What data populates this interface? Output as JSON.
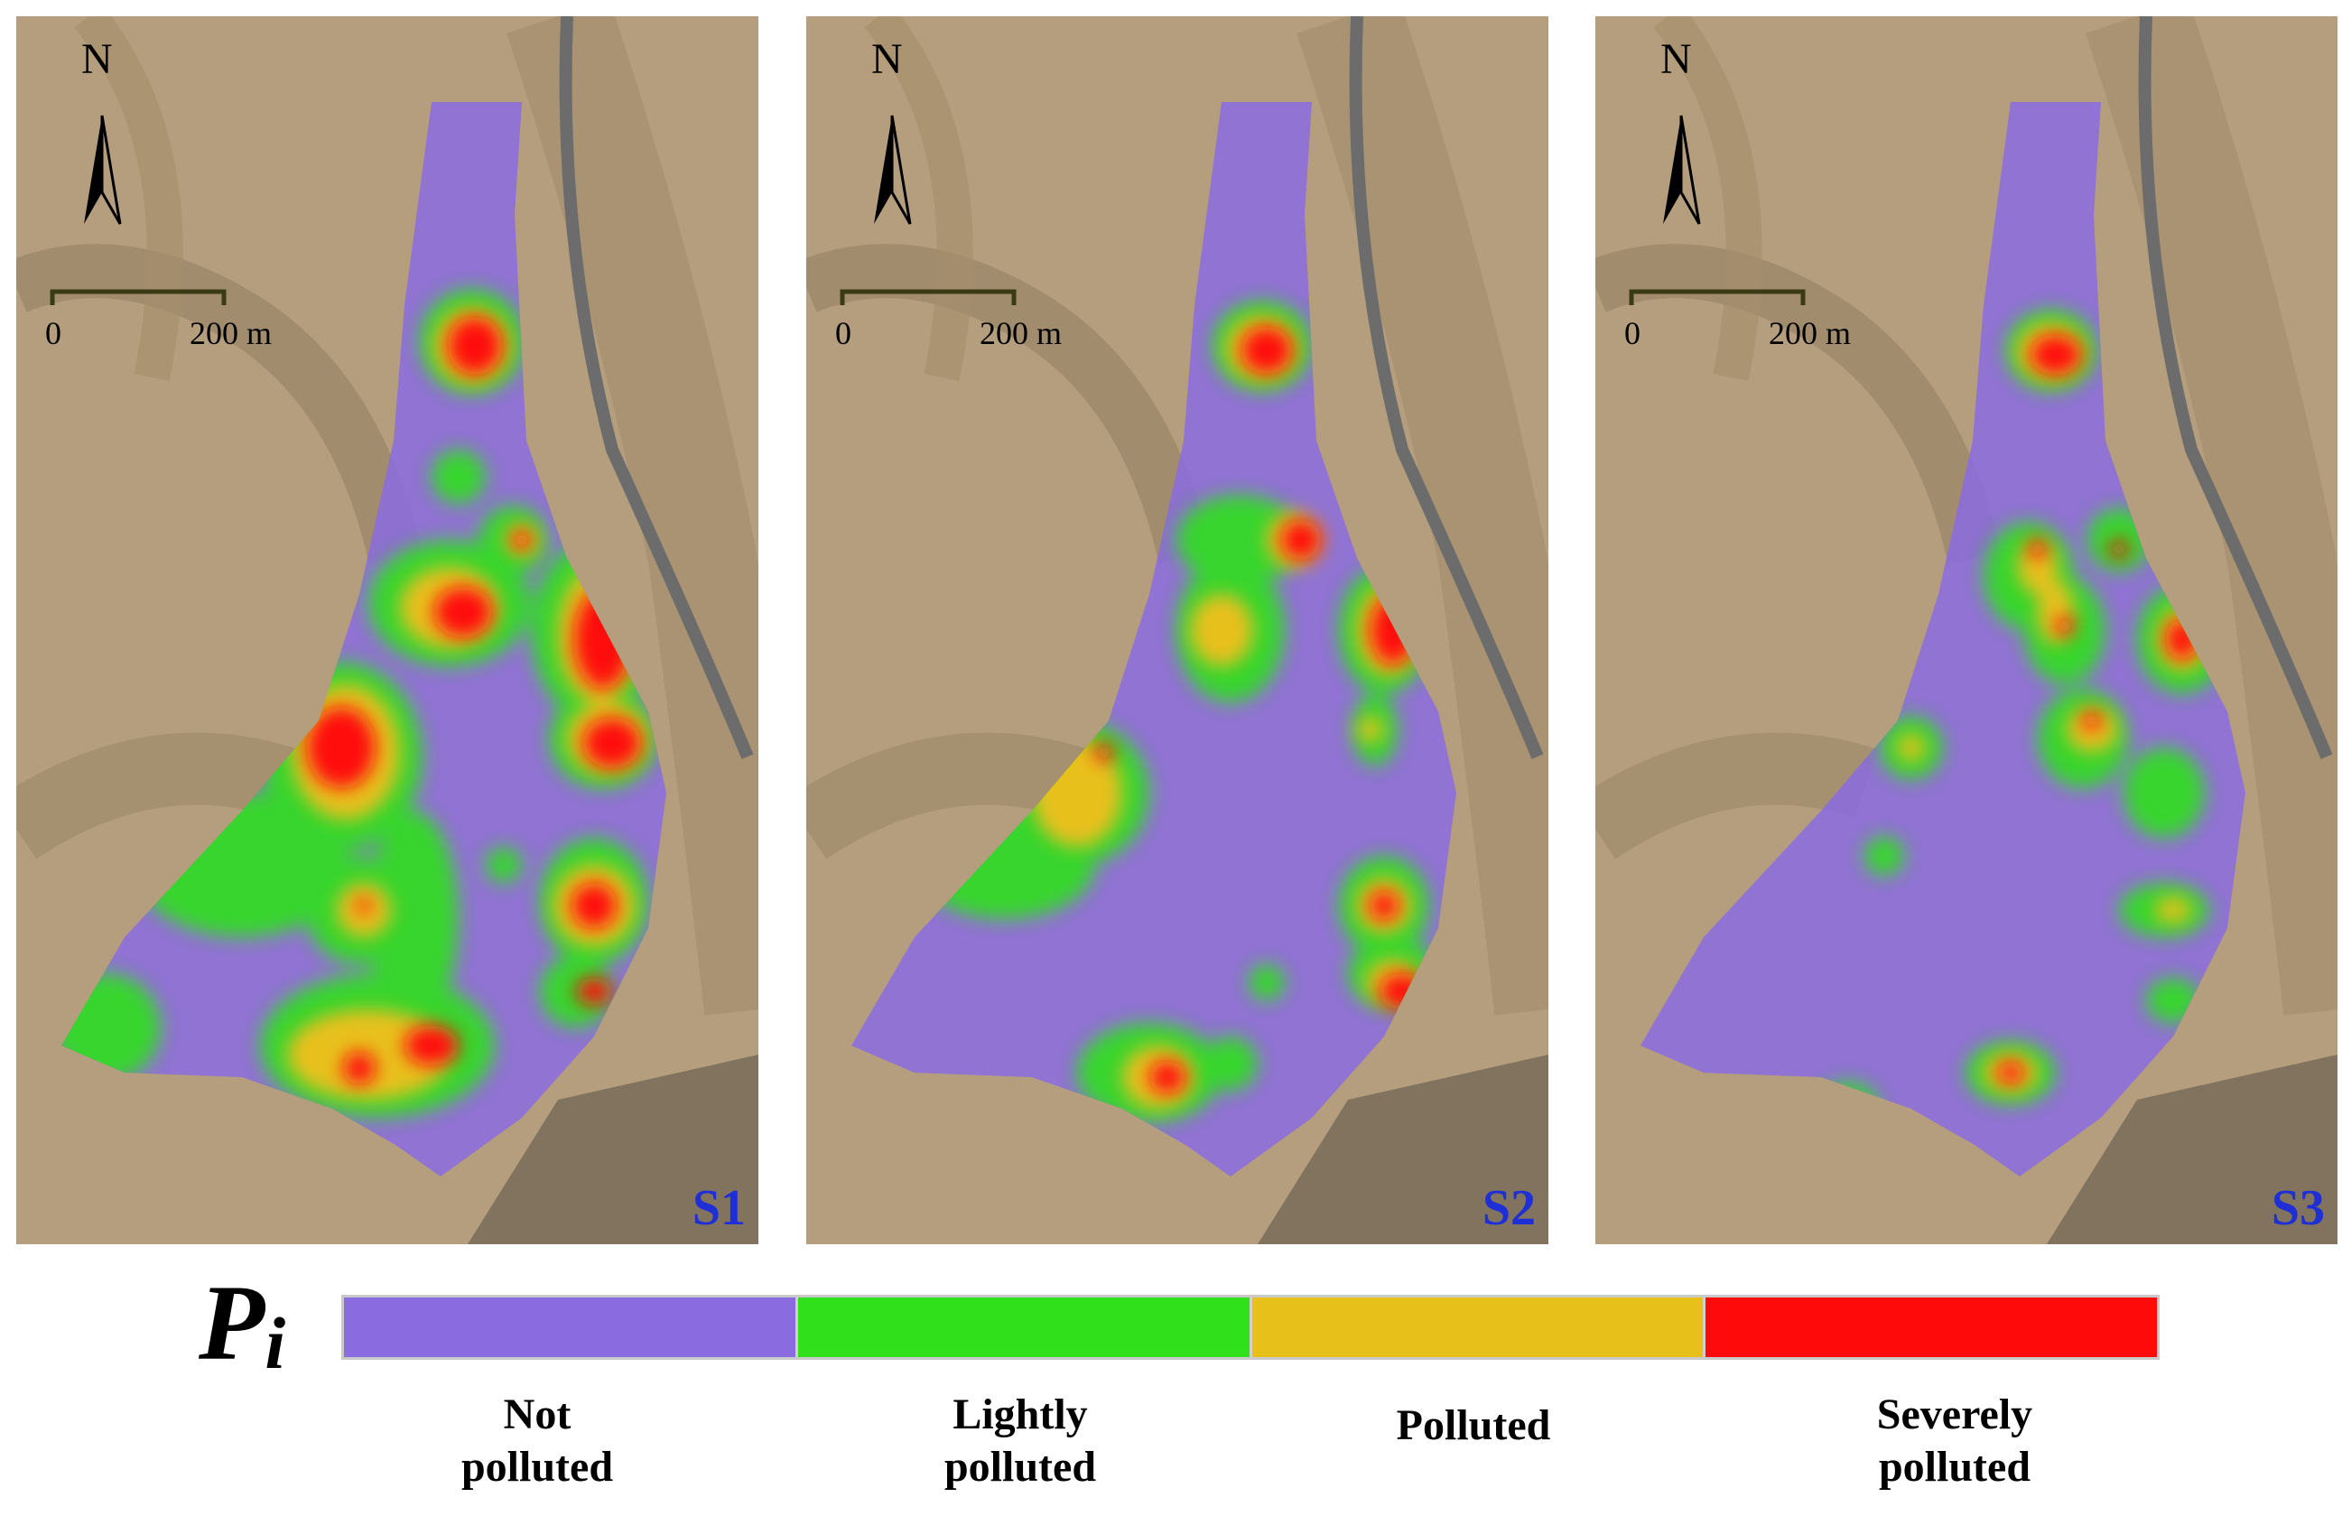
{
  "figure": {
    "north_label": "N",
    "scale_start": "0",
    "scale_end": "200 m",
    "panels": [
      {
        "label": "S1"
      },
      {
        "label": "S2"
      },
      {
        "label": "S3"
      }
    ]
  },
  "legend": {
    "symbol": "P",
    "symbol_subscript": "i",
    "classes": [
      {
        "label_line1": "Not",
        "label_line2": "polluted",
        "color": "#8a6be0"
      },
      {
        "label_line1": "Lightly",
        "label_line2": "polluted",
        "color": "#2fe01a"
      },
      {
        "label_line1": "Polluted",
        "label_line2": "",
        "color": "#e8c01a"
      },
      {
        "label_line1": "Severely",
        "label_line2": "polluted",
        "color": "#ff0a0a"
      }
    ]
  },
  "map_colors": {
    "terrain_base": "#b59e7e",
    "terrain_dark": "#7d6a52",
    "road": "#6c6c6c"
  }
}
